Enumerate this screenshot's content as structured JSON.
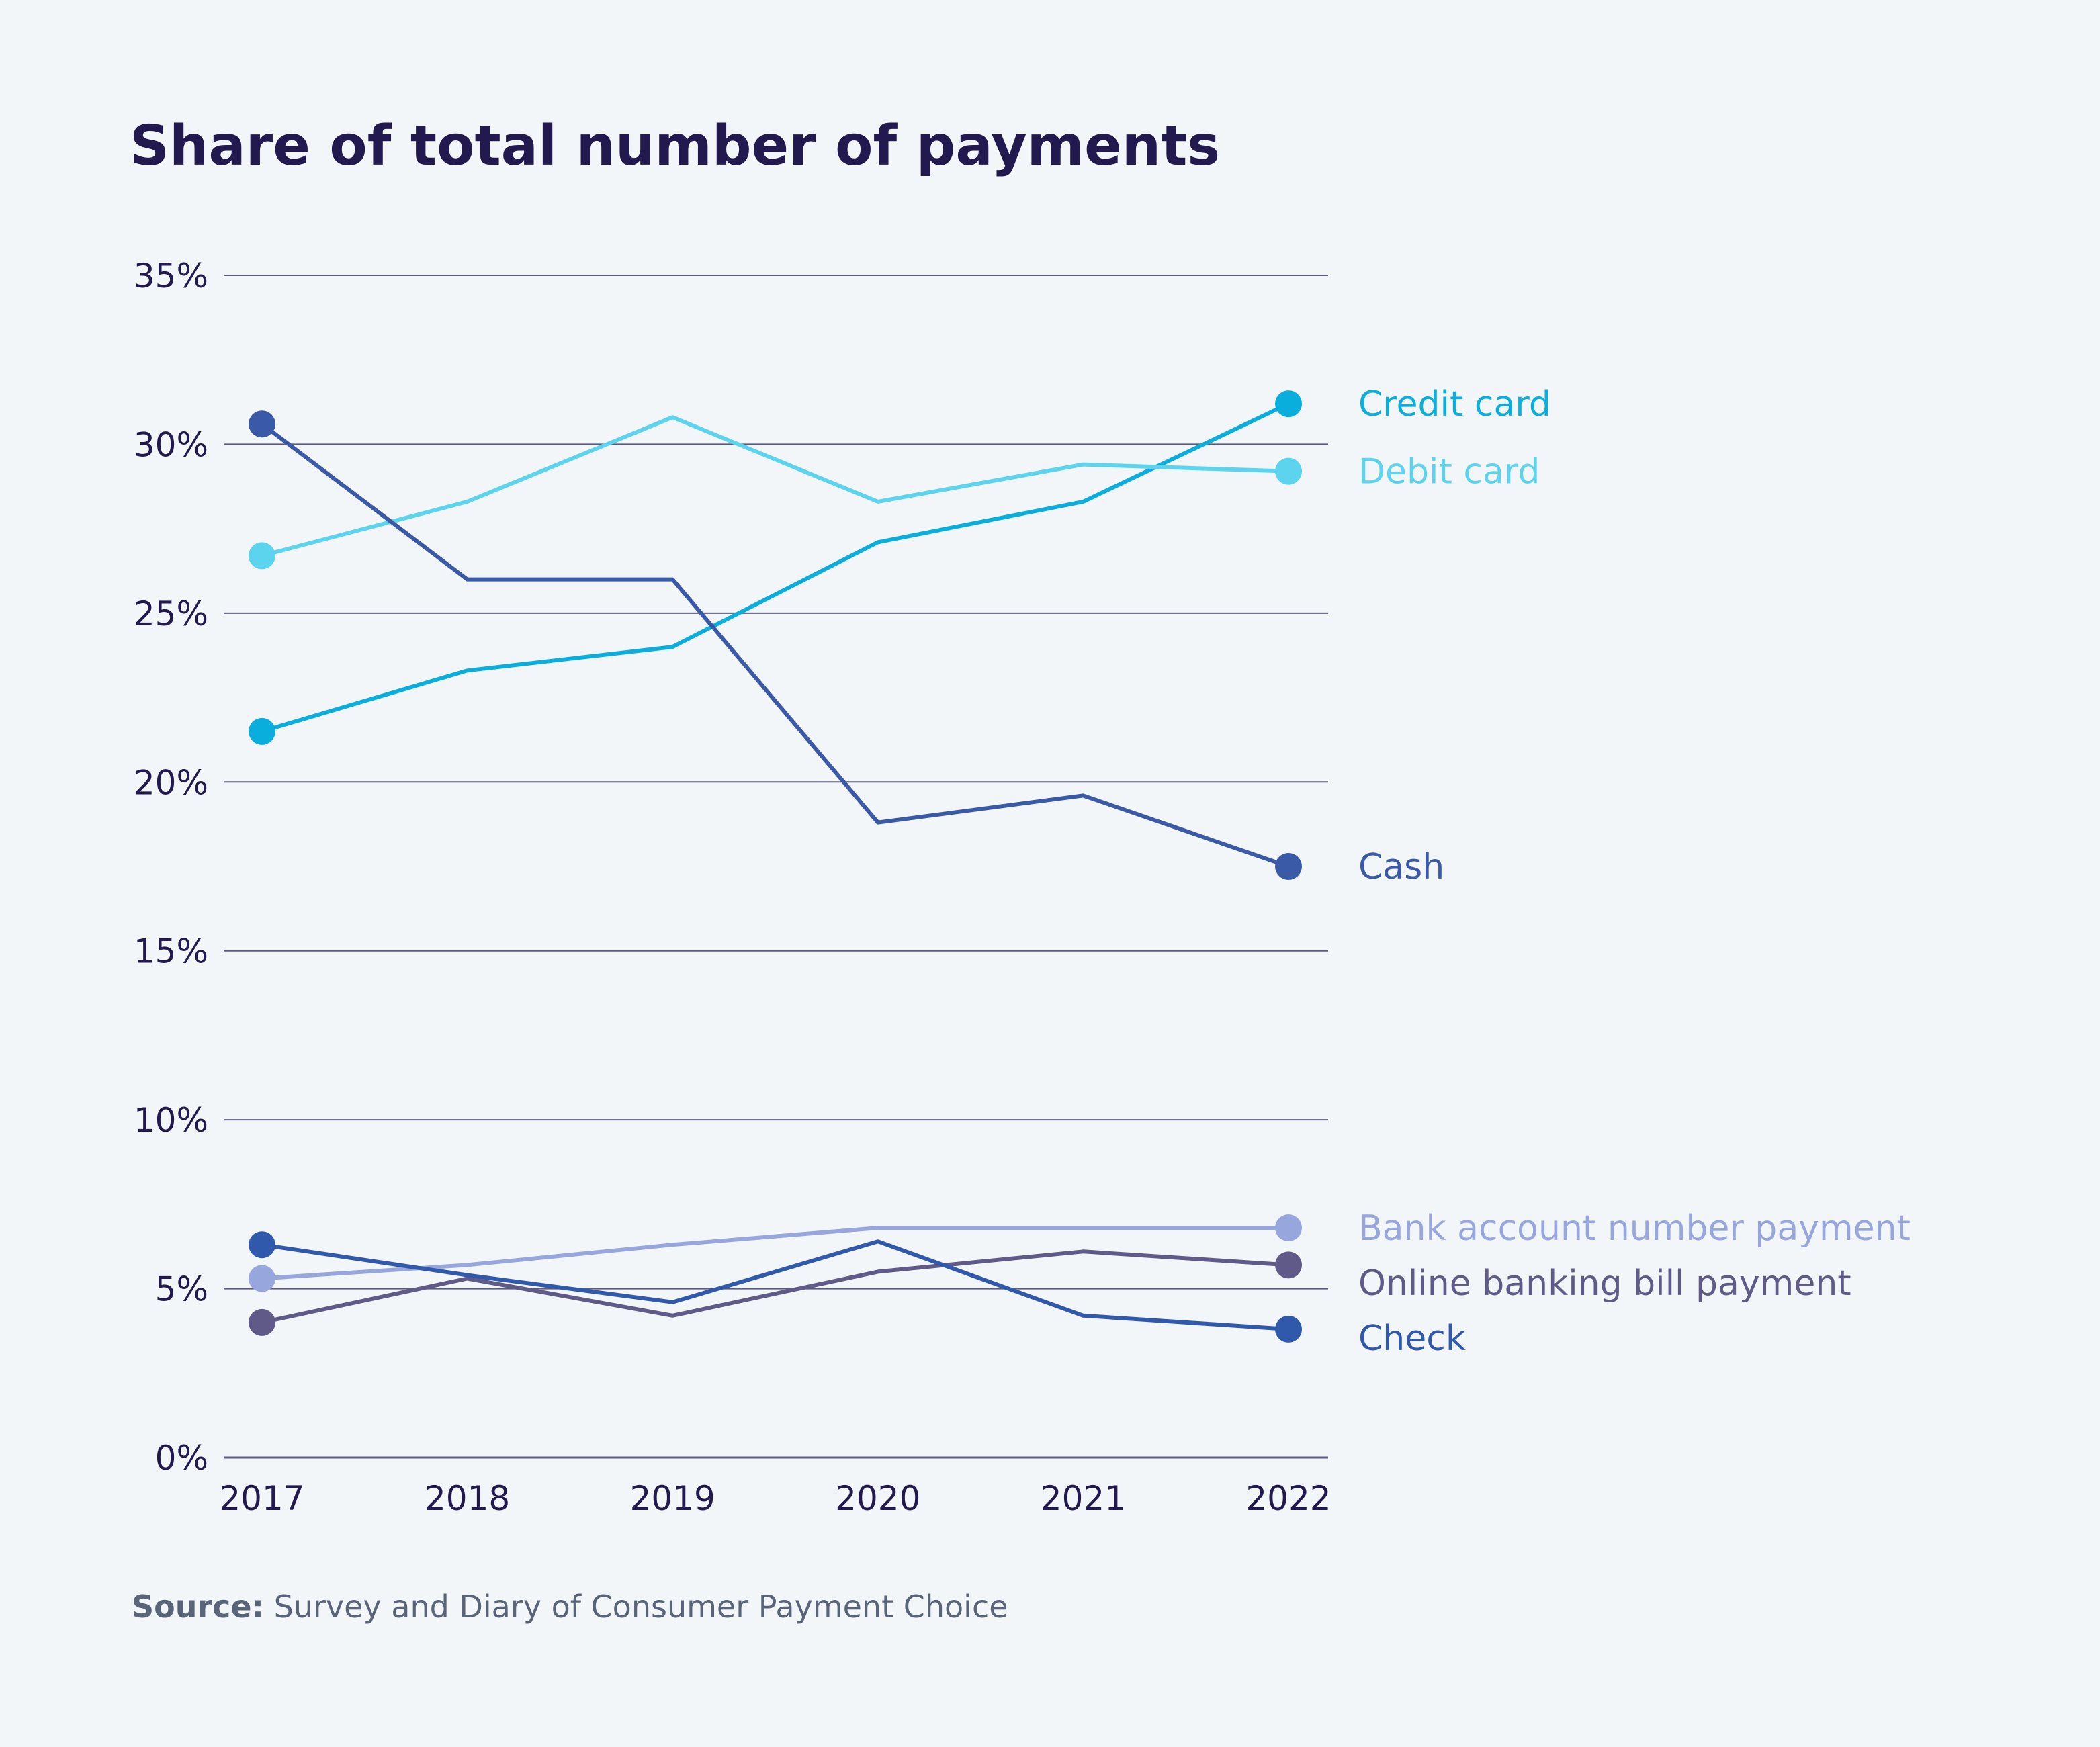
{
  "chart_data": {
    "type": "line",
    "title": "Share of total number of payments",
    "x": [
      "2017",
      "2018",
      "2019",
      "2020",
      "2021",
      "2022"
    ],
    "ylim": [
      0,
      35
    ],
    "yticks": [
      0,
      5,
      10,
      15,
      20,
      25,
      30,
      35
    ],
    "yticks_labels": [
      "0%",
      "5%",
      "10%",
      "15%",
      "20%",
      "25%",
      "30%",
      "35%"
    ],
    "xlabel": "",
    "ylabel": "",
    "grid": true,
    "legend": "direct labels at right end of lines",
    "series": [
      {
        "name": "Credit card",
        "color": "#0aaedc",
        "values": [
          21.5,
          23.3,
          24.0,
          27.1,
          28.3,
          31.2
        ]
      },
      {
        "name": "Debit card",
        "color": "#5cd4ee",
        "values": [
          26.7,
          28.3,
          30.8,
          28.3,
          29.4,
          29.2
        ]
      },
      {
        "name": "Cash",
        "color": "#3a5aa8",
        "values": [
          30.6,
          26.0,
          26.0,
          18.8,
          19.6,
          17.5
        ]
      },
      {
        "name": "Bank account number payment",
        "color": "#98a6de",
        "values": [
          5.3,
          5.7,
          6.3,
          6.8,
          6.8,
          6.8
        ]
      },
      {
        "name": "Online banking bill payment",
        "color": "#5f5a87",
        "values": [
          4.0,
          5.3,
          4.2,
          5.5,
          6.1,
          5.7
        ]
      },
      {
        "name": "Check",
        "color": "#3159ab",
        "values": [
          6.3,
          5.4,
          4.6,
          6.4,
          4.2,
          3.8
        ]
      }
    ],
    "source_label": "Source:",
    "source_text": " Survey and Diary of Consumer Payment Choice"
  },
  "colors": {
    "title": "#221a4f",
    "axis_text": "#221a4f",
    "grid": "#5c5d80",
    "source": "#5a6478",
    "background": "#f3f6f9"
  }
}
